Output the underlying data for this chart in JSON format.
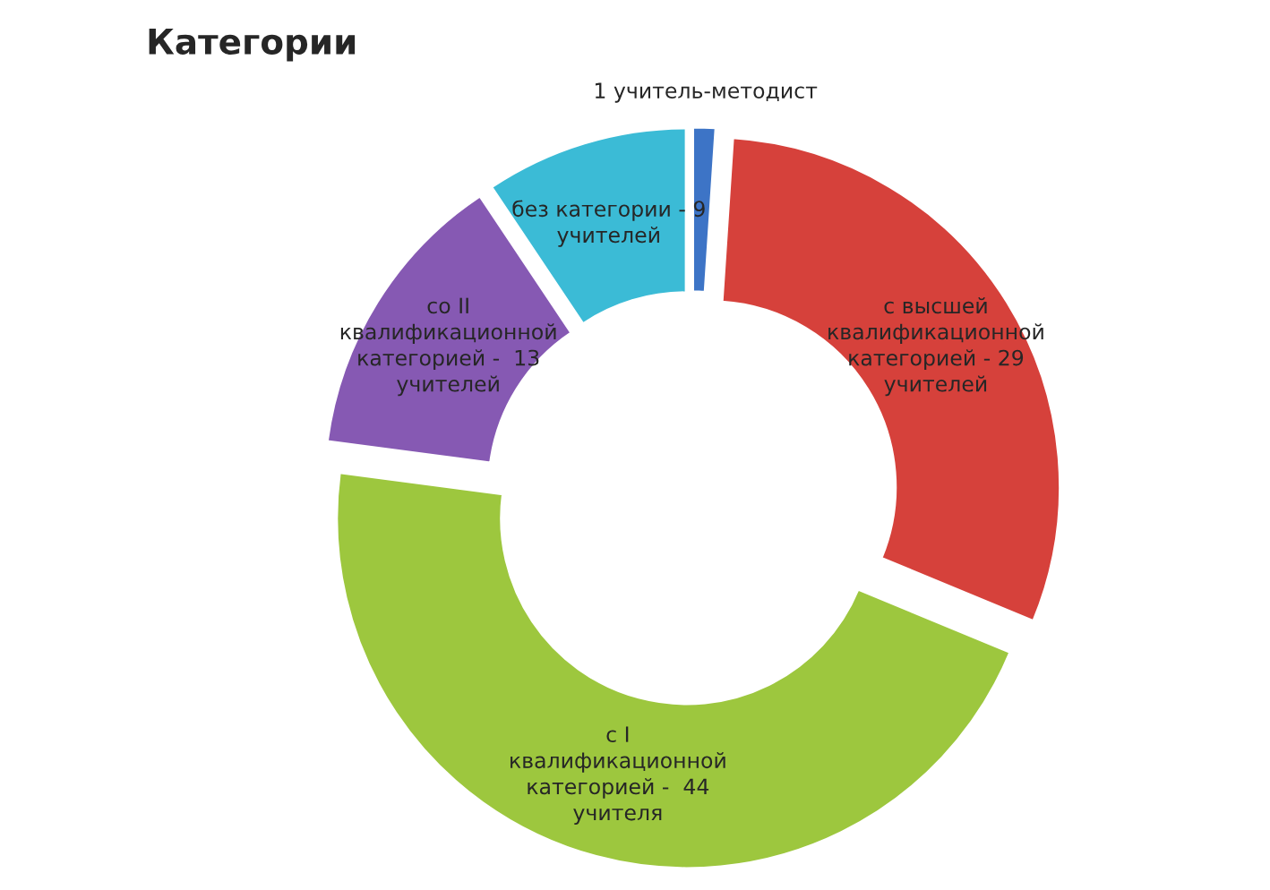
{
  "chart_data": {
    "type": "donut",
    "title": "Категории",
    "categories": [
      "1 учитель-методист",
      "с высшей\nквалификационной\nкатегорией - 29\nучителей",
      "с I\nквалификационной\nкатегорией -  44\nучителя",
      "со II\nквалификационной\nкатегорией -  13\nучителей",
      "без категории - 9\nучителей"
    ],
    "values": [
      1,
      29,
      44,
      13,
      9
    ],
    "colors": [
      "#3d74c6",
      "#d6413b",
      "#9dc73e",
      "#8659b3",
      "#3bbbd6"
    ],
    "legend": false
  }
}
